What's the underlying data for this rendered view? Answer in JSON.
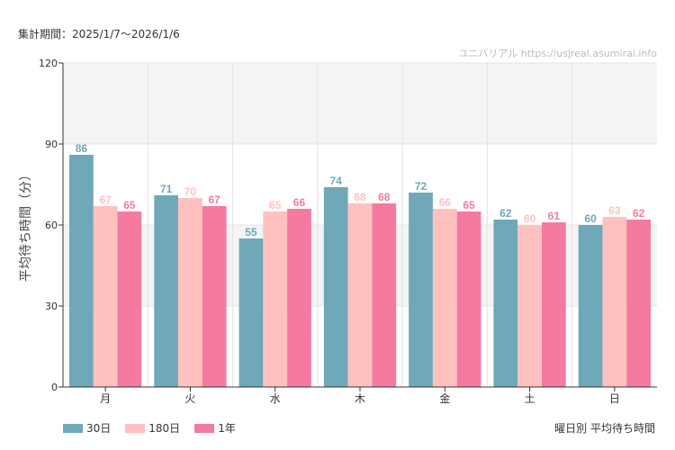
{
  "period_text": "集計期間：2025/1/7〜2026/1/6",
  "watermark": "ユニバリアル  https://usjreal.asumirai.info",
  "caption": "曜日別 平均待ち時間",
  "colors": {
    "30d": "#6fa8b8",
    "180d": "#ffc0c0",
    "1y": "#f47aa0",
    "band": "#f4f4f4",
    "grid": "#e4e4e4"
  },
  "chart_data": {
    "type": "bar",
    "title": "",
    "xlabel": "",
    "ylabel": "平均待ち時間（分）",
    "ylim": [
      0,
      120
    ],
    "yticks": [
      0,
      30,
      60,
      90,
      120
    ],
    "grid": true,
    "legend": "bottom-left",
    "categories": [
      "月",
      "火",
      "水",
      "木",
      "金",
      "土",
      "日"
    ],
    "series": [
      {
        "name": "30日",
        "key": "30d",
        "values": [
          86,
          71,
          55,
          74,
          72,
          62,
          60
        ]
      },
      {
        "name": "180日",
        "key": "180d",
        "values": [
          67,
          70,
          65,
          68,
          66,
          60,
          63
        ]
      },
      {
        "name": "1年",
        "key": "1y",
        "values": [
          65,
          67,
          66,
          68,
          65,
          61,
          62
        ]
      }
    ]
  }
}
